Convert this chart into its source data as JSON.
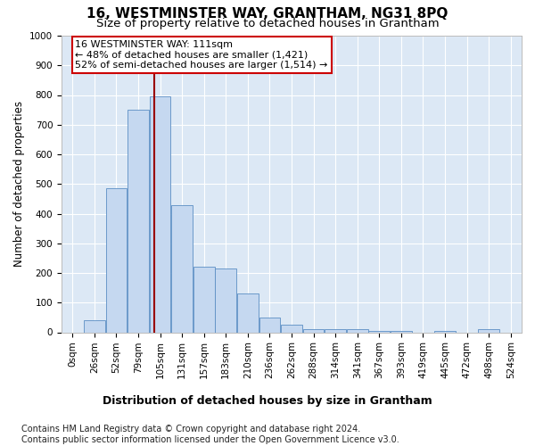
{
  "title": "16, WESTMINSTER WAY, GRANTHAM, NG31 8PQ",
  "subtitle": "Size of property relative to detached houses in Grantham",
  "xlabel": "Distribution of detached houses by size in Grantham",
  "ylabel": "Number of detached properties",
  "bar_labels": [
    "0sqm",
    "26sqm",
    "52sqm",
    "79sqm",
    "105sqm",
    "131sqm",
    "157sqm",
    "183sqm",
    "210sqm",
    "236sqm",
    "262sqm",
    "288sqm",
    "314sqm",
    "341sqm",
    "367sqm",
    "393sqm",
    "419sqm",
    "445sqm",
    "472sqm",
    "498sqm",
    "524sqm"
  ],
  "bar_values": [
    0,
    40,
    485,
    750,
    795,
    430,
    220,
    215,
    130,
    50,
    25,
    12,
    10,
    10,
    5,
    5,
    0,
    5,
    0,
    10,
    0
  ],
  "bar_color": "#c5d8f0",
  "bar_edge_color": "#5b8ec4",
  "bg_color": "#dce8f5",
  "grid_color": "#ffffff",
  "vline_color": "#990000",
  "vline_x": 3.73,
  "annotation_text": "16 WESTMINSTER WAY: 111sqm\n← 48% of detached houses are smaller (1,421)\n52% of semi-detached houses are larger (1,514) →",
  "annotation_box_color": "#ffffff",
  "annotation_box_edge": "#cc0000",
  "ylim": [
    0,
    1000
  ],
  "yticks": [
    0,
    100,
    200,
    300,
    400,
    500,
    600,
    700,
    800,
    900,
    1000
  ],
  "footer": "Contains HM Land Registry data © Crown copyright and database right 2024.\nContains public sector information licensed under the Open Government Licence v3.0.",
  "title_fontsize": 11,
  "subtitle_fontsize": 9.5,
  "footer_fontsize": 7,
  "xlabel_fontsize": 9,
  "ylabel_fontsize": 8.5,
  "tick_fontsize": 7.5,
  "annot_fontsize": 8
}
